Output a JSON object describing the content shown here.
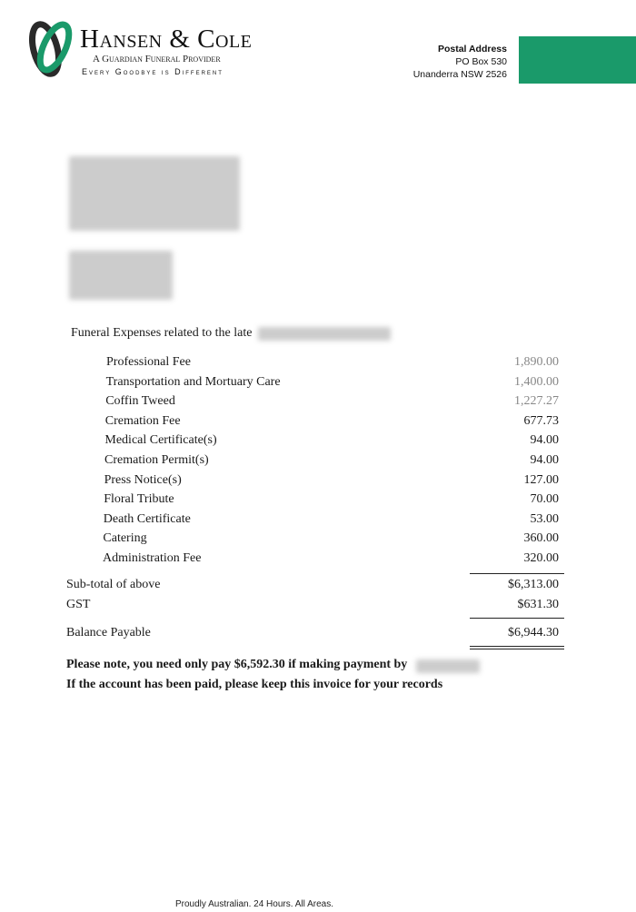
{
  "header": {
    "brand_name": "Hansen & Cole",
    "brand_subtitle": "A Guardian Funeral Provider",
    "tagline": "Every Goodbye is Different",
    "postal_label": "Postal Address",
    "postal_line1": "PO Box 530",
    "postal_line2": "Unanderra NSW 2526",
    "accent_color": "#1a9a6a"
  },
  "intro": "Funeral Expenses related to the late",
  "items": [
    {
      "label": "Professional Fee",
      "amount": "1,890.00"
    },
    {
      "label": "Transportation and Mortuary Care",
      "amount": "1,400.00"
    },
    {
      "label": "Coffin Tweed",
      "amount": "1,227.27"
    },
    {
      "label": "Cremation Fee",
      "amount": "677.73"
    },
    {
      "label": "Medical Certificate(s)",
      "amount": "94.00"
    },
    {
      "label": "Cremation Permit(s)",
      "amount": "94.00"
    },
    {
      "label": "Press Notice(s)",
      "amount": "127.00"
    },
    {
      "label": "Floral Tribute",
      "amount": "70.00"
    },
    {
      "label": "Death Certificate",
      "amount": "53.00"
    },
    {
      "label": "Catering",
      "amount": "360.00"
    },
    {
      "label": "Administration Fee",
      "amount": "320.00"
    }
  ],
  "totals": {
    "subtotal_label": "Sub-total of above",
    "subtotal": "$6,313.00",
    "gst_label": "GST",
    "gst": "$631.30",
    "balance_label": "Balance Payable",
    "balance": "$6,944.30"
  },
  "notes": {
    "early_payment": "Please note, you need only pay $6,592.30 if making payment by",
    "paid": "If the account has been paid, please keep this invoice for your records"
  },
  "footer": "Proudly Australian. 24 Hours. All Areas."
}
